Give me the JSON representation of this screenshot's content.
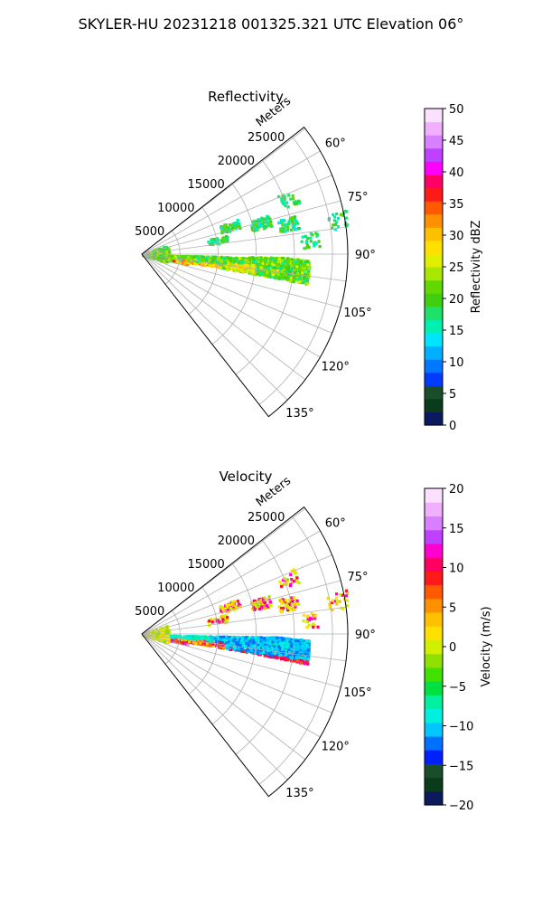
{
  "title": "SKYLER-HU  20231218  001325.321 UTC Elevation 06°",
  "chart_data": [
    {
      "type": "heatmap",
      "projection": "polar-sector",
      "title": "Reflectivity",
      "range_axis_label": "Meters",
      "range_ticks": [
        "5000",
        "10000",
        "15000",
        "20000",
        "25000"
      ],
      "range_max": 27000,
      "azimuth_ticks": [
        "60°",
        "75°",
        "90°",
        "105°",
        "120°",
        "135°"
      ],
      "azimuth_range": [
        52,
        142
      ],
      "grid": true,
      "colorbar": {
        "label": "Reflectivity dBZ",
        "min": 0,
        "max": 50,
        "ticks": [
          "0",
          "5",
          "10",
          "15",
          "20",
          "25",
          "30",
          "35",
          "40",
          "45",
          "50"
        ],
        "colors": [
          "#0b1a5c",
          "#0a3b1a",
          "#1b4d2a",
          "#003cff",
          "#0077ff",
          "#00b0ff",
          "#00e5ff",
          "#00f0b0",
          "#1ee06a",
          "#3fcf10",
          "#62d800",
          "#a9e600",
          "#e0ee00",
          "#ffe000",
          "#ffc000",
          "#ff9000",
          "#ff5a00",
          "#ff1a1a",
          "#ff0066",
          "#ff00ff",
          "#c040ff",
          "#d880ff",
          "#f0b0ff",
          "#fbe0ff"
        ]
      },
      "summary": "Echoes concentrated between azimuth ~92° and ~105°, ranges 0–22000 m, mostly 15–30 dBZ with a 30–38 dBZ core near 5000–9000 m; scattered weak echoes near 70–80°."
    },
    {
      "type": "heatmap",
      "projection": "polar-sector",
      "title": "Velocity",
      "range_axis_label": "Meters",
      "range_ticks": [
        "5000",
        "10000",
        "15000",
        "20000",
        "25000"
      ],
      "range_max": 27000,
      "azimuth_ticks": [
        "60°",
        "75°",
        "90°",
        "105°",
        "120°",
        "135°"
      ],
      "azimuth_range": [
        52,
        142
      ],
      "grid": true,
      "colorbar": {
        "label": "Velocity (m/s)",
        "min": -20,
        "max": 20,
        "ticks": [
          "−20",
          "−15",
          "−10",
          "−5",
          "0",
          "5",
          "10",
          "15",
          "20"
        ],
        "colors": [
          "#0b1a5c",
          "#0a3b1a",
          "#1b4d2a",
          "#0020ff",
          "#0070ff",
          "#00c8ff",
          "#00f0e0",
          "#00f0a0",
          "#00e040",
          "#40e000",
          "#90e000",
          "#d0f000",
          "#ffe000",
          "#ffc000",
          "#ff9000",
          "#ff5a00",
          "#ff1a1a",
          "#ff0060",
          "#ff00d0",
          "#c040ff",
          "#d880ff",
          "#f0b0ff",
          "#fbe0ff"
        ]
      },
      "summary": "Inbound (negative, cyan/green) velocities at larger ranges near 92–100°, outbound (positive, red/magenta) velocities at 5000–15000 m near 95–105°; yellow near-zero values close to radar and near 70–80°."
    }
  ]
}
